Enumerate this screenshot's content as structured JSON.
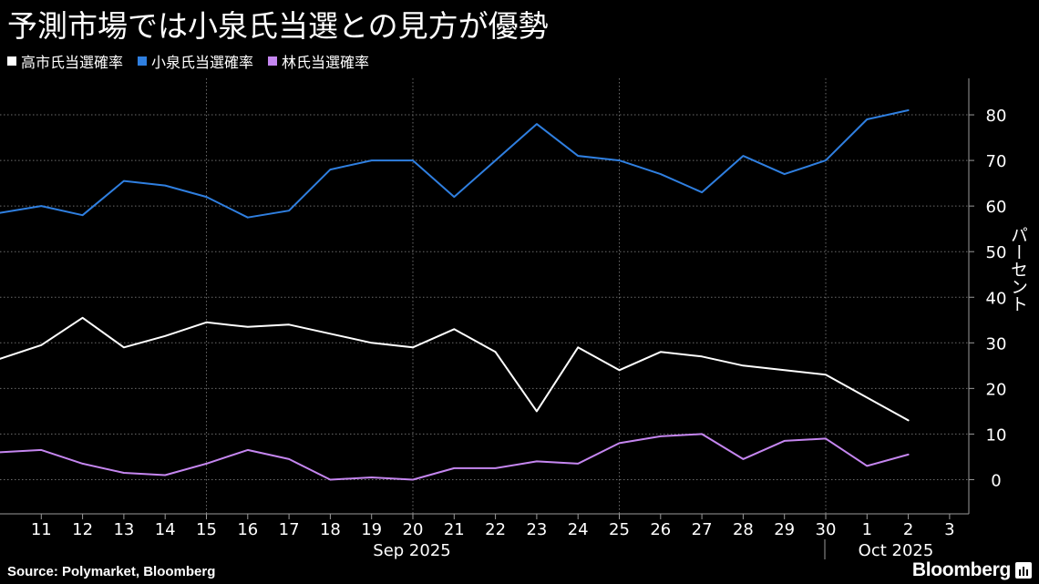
{
  "title": "予測市場では小泉氏当選との見方が優勢",
  "legend": [
    {
      "label": "高市氏当選確率",
      "color": "#ffffff"
    },
    {
      "label": "小泉氏当選確率",
      "color": "#2f7fe0"
    },
    {
      "label": "林氏当選確率",
      "color": "#c586f0"
    }
  ],
  "source": "Source:  Polymarket, Bloomberg",
  "logo": "Bloomberg",
  "chart_data": {
    "type": "line",
    "ylabel": "パーセント",
    "ylim": [
      -7.5,
      88
    ],
    "yticks": [
      0,
      10,
      20,
      30,
      40,
      50,
      60,
      70,
      80
    ],
    "x_tick_labels": [
      "11",
      "12",
      "13",
      "14",
      "15",
      "16",
      "17",
      "18",
      "19",
      "20",
      "21",
      "22",
      "23",
      "24",
      "25",
      "26",
      "27",
      "28",
      "29",
      "30",
      "1",
      "2",
      "3"
    ],
    "month_labels": [
      "Sep 2025",
      "Oct 2025"
    ],
    "grid": "dotted",
    "y_axis_position": "right",
    "x": [
      "2025-09-10",
      "2025-09-11",
      "2025-09-12",
      "2025-09-13",
      "2025-09-14",
      "2025-09-15",
      "2025-09-16",
      "2025-09-17",
      "2025-09-18",
      "2025-09-19",
      "2025-09-20",
      "2025-09-21",
      "2025-09-22",
      "2025-09-23",
      "2025-09-24",
      "2025-09-25",
      "2025-09-26",
      "2025-09-27",
      "2025-09-28",
      "2025-09-29",
      "2025-09-30",
      "2025-10-01",
      "2025-10-02"
    ],
    "series": [
      {
        "name": "高市氏当選確率",
        "color": "#ffffff",
        "values": [
          26.5,
          29.5,
          35.5,
          29,
          31.5,
          34.5,
          33.5,
          34,
          32,
          30,
          29,
          33,
          28,
          15,
          29,
          24,
          28,
          27,
          25,
          24,
          23,
          18,
          13
        ]
      },
      {
        "name": "小泉氏当選確率",
        "color": "#2f7fe0",
        "values": [
          58.5,
          60,
          58,
          65.5,
          64.5,
          62,
          57.5,
          59,
          68,
          70,
          70,
          62,
          70,
          78,
          71,
          70,
          67,
          63,
          71,
          67,
          70,
          79,
          81
        ]
      },
      {
        "name": "林氏当選確率",
        "color": "#c586f0",
        "values": [
          6,
          6.5,
          3.5,
          1.5,
          1,
          3.5,
          6.5,
          4.5,
          0,
          0.5,
          0,
          2.5,
          2.5,
          4,
          3.5,
          8,
          9.5,
          10,
          4.5,
          8.5,
          9,
          3,
          5.5
        ]
      }
    ]
  }
}
